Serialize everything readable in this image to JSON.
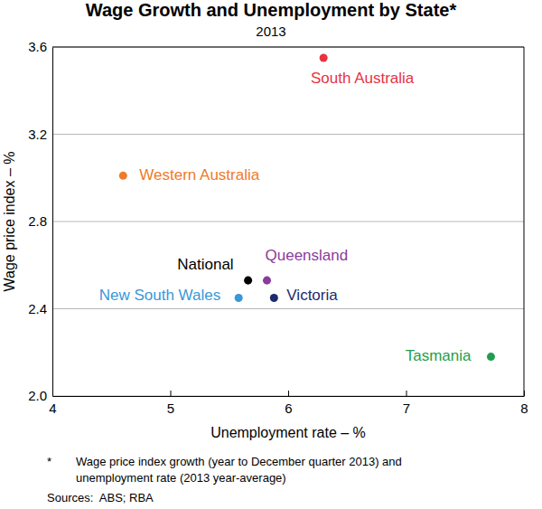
{
  "chart_data": {
    "type": "scatter",
    "title": "Wage Growth and Unemployment by State*",
    "subtitle": "2013",
    "x_label": "Unemployment rate – %",
    "y_label": "Wage price index – %",
    "notes": [
      "*",
      "Wage price index growth (year to December quarter 2013) and",
      "unemployment rate (2013 year-average)"
    ],
    "source": "Sources:  ABS; RBA",
    "series": [
      {
        "name": "South Australia",
        "color": "#e8333f",
        "x": [
          6.3
        ],
        "values": [
          3.55
        ]
      },
      {
        "name": "Western Australia",
        "color": "#f07a2a",
        "x": [
          4.6
        ],
        "values": [
          3.01
        ]
      },
      {
        "name": "National",
        "color": "#000000",
        "x": [
          5.66
        ],
        "values": [
          2.53
        ]
      },
      {
        "name": "Queensland",
        "color": "#8a3c9c",
        "x": [
          5.82
        ],
        "values": [
          2.53
        ]
      },
      {
        "name": "New South Wales",
        "color": "#3a97d8",
        "x": [
          5.58
        ],
        "values": [
          2.45
        ]
      },
      {
        "name": "Victoria",
        "color": "#1d2a6e",
        "x": [
          5.88
        ],
        "values": [
          2.45
        ]
      },
      {
        "name": "Tasmania",
        "color": "#1e9e4c",
        "x": [
          7.72
        ],
        "values": [
          2.18
        ]
      }
    ],
    "xlim": [
      4,
      8
    ],
    "xticks": [
      4,
      5,
      6,
      7,
      8
    ],
    "ylim": [
      2,
      3.6
    ],
    "yticks": [
      {
        "value": 2,
        "label": "2.0"
      },
      2.4,
      2.8,
      3.2,
      3.6
    ],
    "grid": true,
    "marker": "circle"
  }
}
